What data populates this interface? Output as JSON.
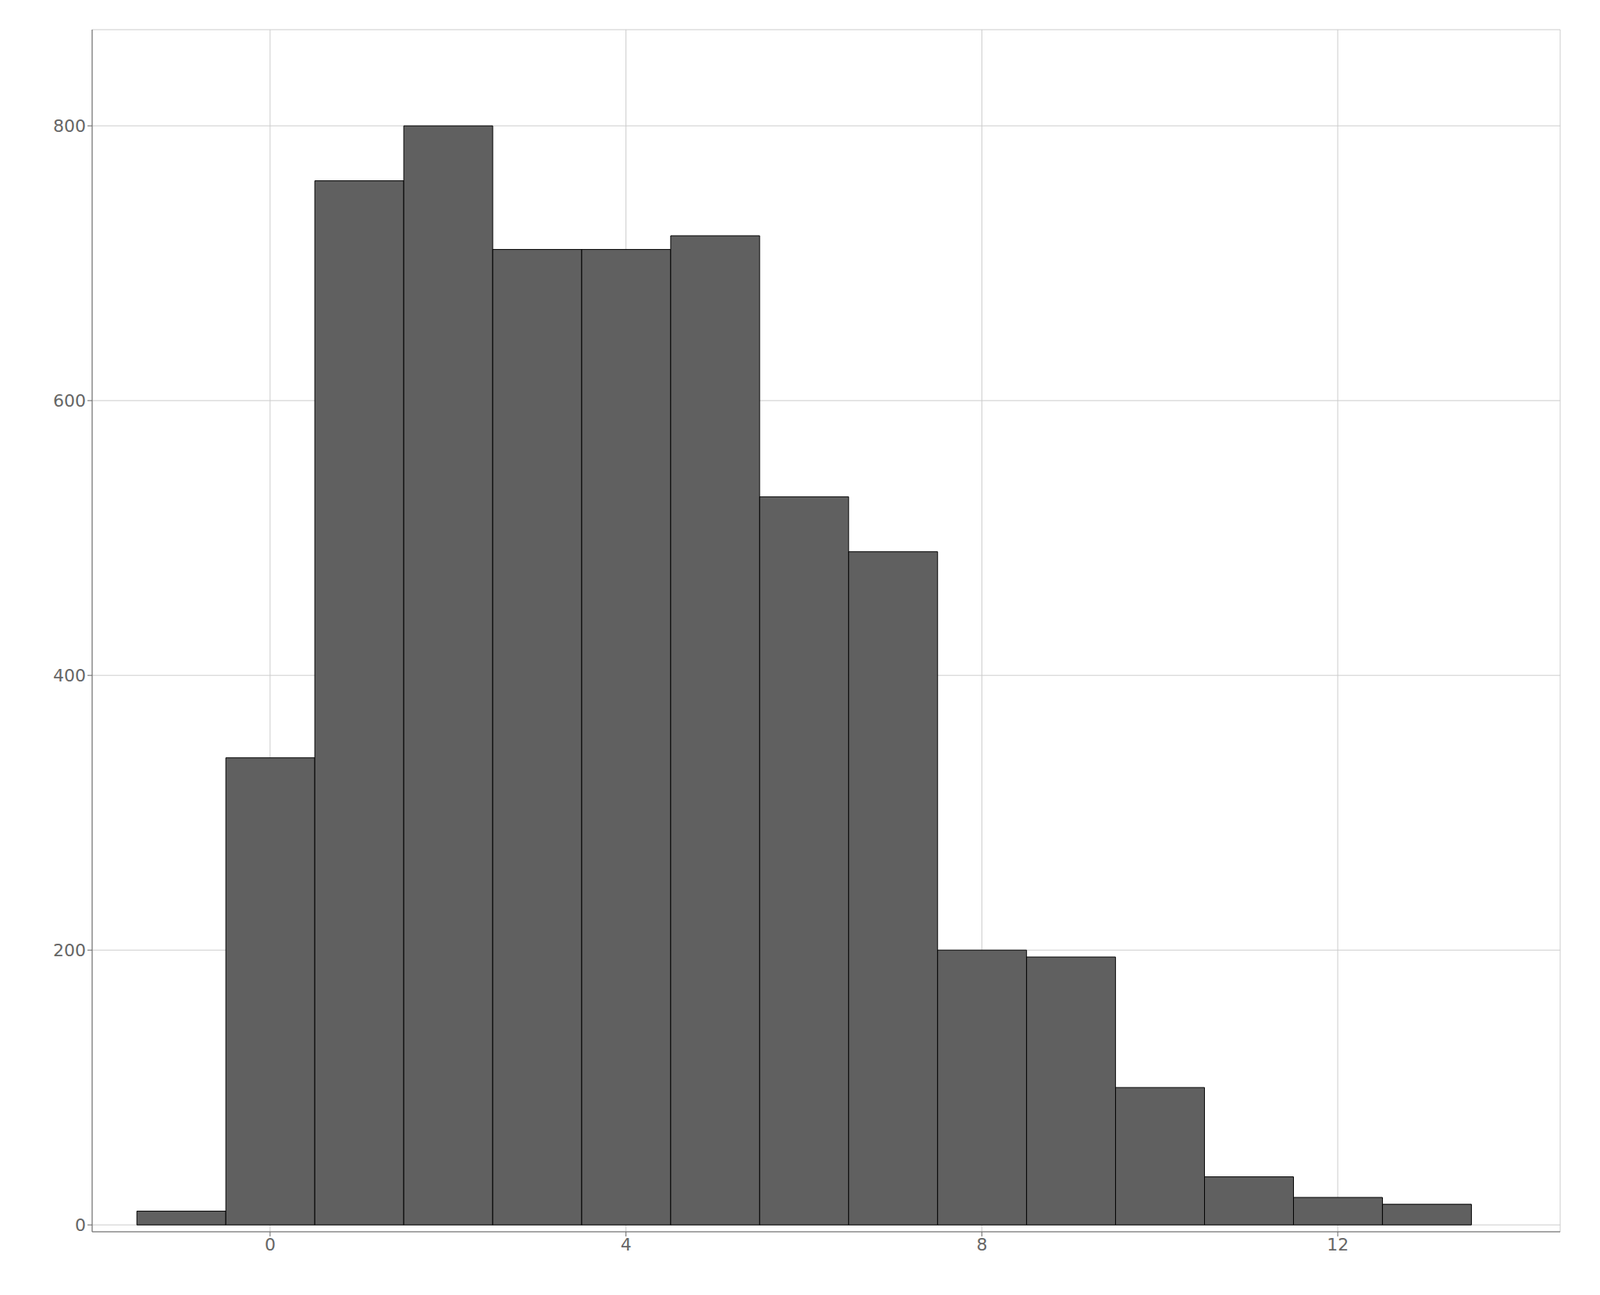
{
  "chart_data": {
    "type": "histogram",
    "bins": [
      -1.5,
      -0.5,
      0.5,
      1.5,
      2.5,
      3.5,
      4.5,
      5.5,
      6.5,
      7.5,
      8.5,
      9.5,
      10.5,
      11.5,
      12.5,
      13.5
    ],
    "values": [
      10,
      340,
      760,
      800,
      710,
      710,
      720,
      530,
      490,
      200,
      195,
      100,
      35,
      20,
      15
    ],
    "color": "#606060",
    "xlim": [
      -2.0,
      14.5
    ],
    "ylim": [
      -5,
      870
    ],
    "xticks": [
      0,
      4,
      8,
      12
    ],
    "yticks": [
      0,
      200,
      400,
      600,
      800
    ],
    "grid": true
  }
}
